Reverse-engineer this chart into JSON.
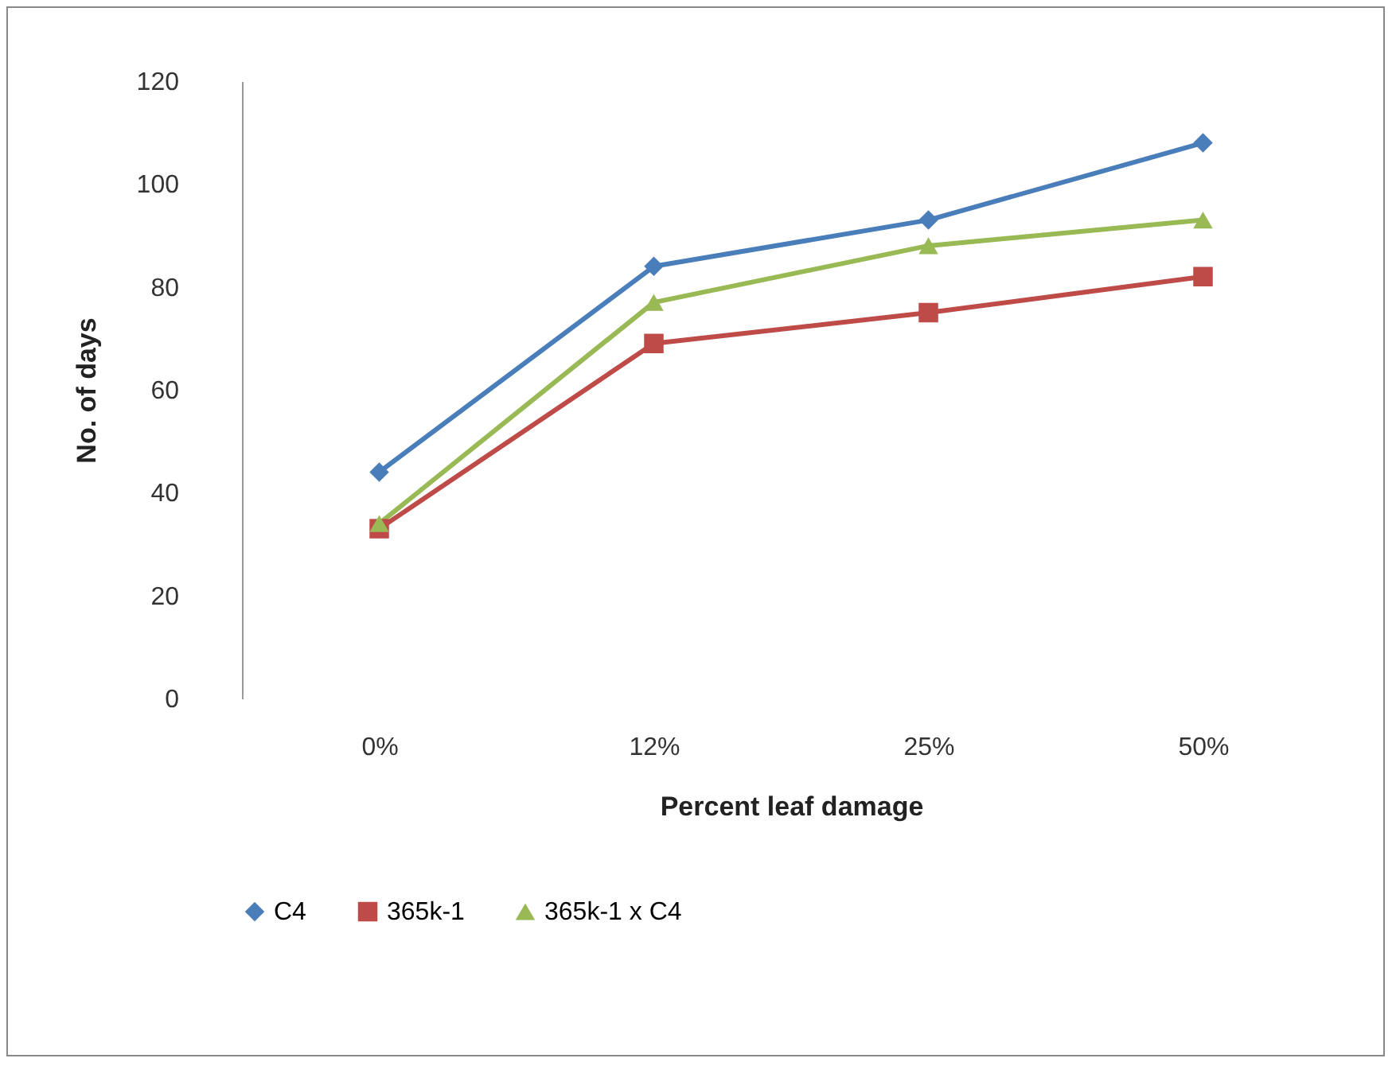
{
  "chart_data": {
    "type": "line",
    "xlabel": "Percent leaf damage",
    "ylabel": "No. of days",
    "categories": [
      "0%",
      "12%",
      "25%",
      "50%"
    ],
    "series": [
      {
        "name": "C4",
        "color": "#4a7ebb",
        "marker": "diamond",
        "values": [
          44,
          84,
          93,
          108
        ]
      },
      {
        "name": "365k-1",
        "color": "#be4b48",
        "marker": "square",
        "values": [
          33,
          69,
          75,
          82
        ]
      },
      {
        "name": "365k-1 x C4",
        "color": "#98b954",
        "marker": "triangle",
        "values": [
          34,
          77,
          88,
          93
        ]
      }
    ],
    "ylim": [
      0,
      120
    ],
    "yticks": [
      0,
      20,
      40,
      60,
      80,
      100,
      120
    ],
    "grid": false,
    "legend": "bottom"
  }
}
